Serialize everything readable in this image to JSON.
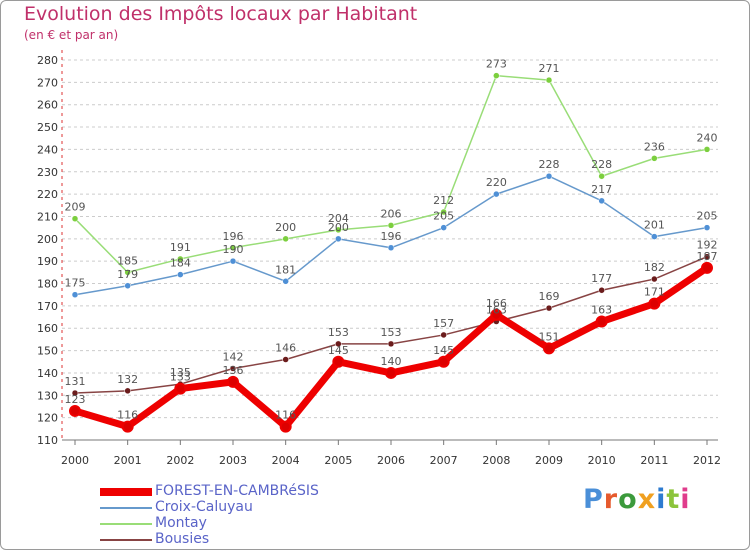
{
  "title": "Evolution des Impôts locaux par Habitant",
  "subtitle": "(en € et par an)",
  "logo_text": "Proxiti",
  "logo_colors": [
    "#4a8fd8",
    "#e65a2d",
    "#3c9a3c",
    "#f0a020",
    "#2d7bd0",
    "#8cc43c",
    "#e03c8c"
  ],
  "chart_data": {
    "type": "line",
    "title": "Evolution des Impôts locaux par Habitant",
    "subtitle": "(en € et par an)",
    "x": [
      "2000",
      "2001",
      "2002",
      "2003",
      "2004",
      "2005",
      "2006",
      "2007",
      "2008",
      "2009",
      "2010",
      "2011",
      "2012"
    ],
    "y_ticks": [
      "110",
      "120",
      "130",
      "140",
      "150",
      "160",
      "170",
      "180",
      "190",
      "200",
      "210",
      "220",
      "230",
      "240",
      "250",
      "260",
      "270",
      "280"
    ],
    "ylim": [
      110,
      280
    ],
    "grid": "horizontal dashed",
    "legend_position": "bottom-left",
    "series": [
      {
        "name": "FOREST-EN-CAMBRéSIS",
        "color": "#ee0000",
        "marker": "#dd0000",
        "width": 7,
        "values": [
          123,
          116,
          133,
          136,
          116,
          145,
          140,
          145,
          166,
          151,
          163,
          171,
          187
        ]
      },
      {
        "name": "Croix-Caluyau",
        "color": "#6699cc",
        "marker": "#4f90d6",
        "width": 1.5,
        "values": [
          175,
          179,
          184,
          190,
          181,
          200,
          196,
          205,
          220,
          228,
          217,
          201,
          205
        ]
      },
      {
        "name": "Montay",
        "color": "#99dd77",
        "marker": "#7ccf3e",
        "width": 1.5,
        "values": [
          209,
          185,
          191,
          196,
          200,
          204,
          206,
          212,
          273,
          271,
          228,
          236,
          240
        ]
      },
      {
        "name": "Bousies",
        "color": "#884444",
        "marker": "#6b1c1c",
        "width": 1.5,
        "values": [
          131,
          132,
          135,
          142,
          146,
          153,
          153,
          157,
          163,
          169,
          177,
          182,
          192
        ]
      }
    ],
    "data_labels": {
      "FOREST-EN-CAMBRéSIS": [
        "123",
        "116",
        "133",
        "136",
        "116",
        "145",
        "140",
        "145",
        "166",
        "151",
        "163",
        "171",
        "187"
      ],
      "Croix-Caluyau": [
        "175",
        "179",
        "184",
        "190",
        "181",
        "200",
        "196",
        "205",
        "220",
        "228",
        "217",
        "201",
        "205"
      ],
      "Montay": [
        "209",
        "185",
        "191",
        "196",
        "200",
        "204",
        "206",
        "212",
        "273",
        "271",
        "228",
        "236",
        "240"
      ],
      "Bousies": [
        "131",
        "132",
        "135",
        "142",
        "146",
        "153",
        "153",
        "157",
        "163",
        "169",
        "177",
        "182",
        "192"
      ]
    }
  }
}
